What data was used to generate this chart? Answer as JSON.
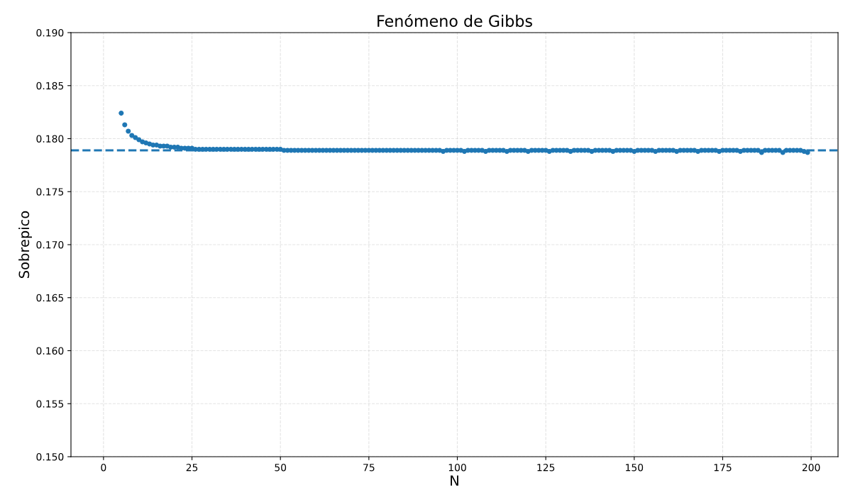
{
  "chart_data": {
    "type": "scatter",
    "title": "Fenómeno de Gibbs",
    "xlabel": "N",
    "ylabel": "Sobrepico",
    "x": [
      5,
      6,
      7,
      8,
      9,
      10,
      11,
      12,
      13,
      14,
      15,
      16,
      17,
      18,
      19,
      20,
      21,
      22,
      23,
      24,
      25,
      26,
      27,
      28,
      29,
      30,
      31,
      32,
      33,
      34,
      35,
      36,
      37,
      38,
      39,
      40,
      41,
      42,
      43,
      44,
      45,
      46,
      47,
      48,
      49,
      50,
      51,
      52,
      53,
      54,
      55,
      56,
      57,
      58,
      59,
      60,
      61,
      62,
      63,
      64,
      65,
      66,
      67,
      68,
      69,
      70,
      71,
      72,
      73,
      74,
      75,
      76,
      77,
      78,
      79,
      80,
      81,
      82,
      83,
      84,
      85,
      86,
      87,
      88,
      89,
      90,
      91,
      92,
      93,
      94,
      95,
      96,
      97,
      98,
      99,
      100,
      101,
      102,
      103,
      104,
      105,
      106,
      107,
      108,
      109,
      110,
      111,
      112,
      113,
      114,
      115,
      116,
      117,
      118,
      119,
      120,
      121,
      122,
      123,
      124,
      125,
      126,
      127,
      128,
      129,
      130,
      131,
      132,
      133,
      134,
      135,
      136,
      137,
      138,
      139,
      140,
      141,
      142,
      143,
      144,
      145,
      146,
      147,
      148,
      149,
      150,
      151,
      152,
      153,
      154,
      155,
      156,
      157,
      158,
      159,
      160,
      161,
      162,
      163,
      164,
      165,
      166,
      167,
      168,
      169,
      170,
      171,
      172,
      173,
      174,
      175,
      176,
      177,
      178,
      179,
      180,
      181,
      182,
      183,
      184,
      185,
      186,
      187,
      188,
      189,
      190,
      191,
      192,
      193,
      194,
      195,
      196,
      197,
      198,
      199
    ],
    "series": [
      {
        "color": "#1f77b4",
        "values": [
          0.1824,
          0.1813,
          0.1807,
          0.1803,
          0.1801,
          0.1799,
          0.1797,
          0.1796,
          0.1795,
          0.1794,
          0.1794,
          0.1793,
          0.1793,
          0.1793,
          0.1792,
          0.1792,
          0.1792,
          0.1791,
          0.1791,
          0.1791,
          0.1791,
          0.179,
          0.179,
          0.179,
          0.179,
          0.179,
          0.179,
          0.179,
          0.179,
          0.179,
          0.179,
          0.179,
          0.179,
          0.179,
          0.179,
          0.179,
          0.179,
          0.179,
          0.179,
          0.179,
          0.179,
          0.179,
          0.179,
          0.179,
          0.179,
          0.179,
          0.1789,
          0.1789,
          0.1789,
          0.1789,
          0.1789,
          0.1789,
          0.1789,
          0.1789,
          0.1789,
          0.1789,
          0.1789,
          0.1789,
          0.1789,
          0.1789,
          0.1789,
          0.1789,
          0.1789,
          0.1789,
          0.1789,
          0.1789,
          0.1789,
          0.1789,
          0.1789,
          0.1789,
          0.1789,
          0.1789,
          0.1789,
          0.1789,
          0.1789,
          0.1789,
          0.1789,
          0.1789,
          0.1789,
          0.1789,
          0.1789,
          0.1789,
          0.1789,
          0.1789,
          0.1789,
          0.1789,
          0.1789,
          0.1789,
          0.1789,
          0.1789,
          0.1789,
          0.1788,
          0.1789,
          0.1789,
          0.1789,
          0.1789,
          0.1789,
          0.1788,
          0.1789,
          0.1789,
          0.1789,
          0.1789,
          0.1789,
          0.1788,
          0.1789,
          0.1789,
          0.1789,
          0.1789,
          0.1789,
          0.1788,
          0.1789,
          0.1789,
          0.1789,
          0.1789,
          0.1789,
          0.1788,
          0.1789,
          0.1789,
          0.1789,
          0.1789,
          0.1789,
          0.1788,
          0.1789,
          0.1789,
          0.1789,
          0.1789,
          0.1789,
          0.1788,
          0.1789,
          0.1789,
          0.1789,
          0.1789,
          0.1789,
          0.1788,
          0.1789,
          0.1789,
          0.1789,
          0.1789,
          0.1789,
          0.1788,
          0.1789,
          0.1789,
          0.1789,
          0.1789,
          0.1789,
          0.1788,
          0.1789,
          0.1789,
          0.1789,
          0.1789,
          0.1789,
          0.1788,
          0.1789,
          0.1789,
          0.1789,
          0.1789,
          0.1789,
          0.1788,
          0.1789,
          0.1789,
          0.1789,
          0.1789,
          0.1789,
          0.1788,
          0.1789,
          0.1789,
          0.1789,
          0.1789,
          0.1789,
          0.1788,
          0.1789,
          0.1789,
          0.1789,
          0.1789,
          0.1789,
          0.1788,
          0.1789,
          0.1789,
          0.1789,
          0.1789,
          0.1789,
          0.1787,
          0.1789,
          0.1789,
          0.1789,
          0.1789,
          0.1789,
          0.1787,
          0.1789,
          0.1789,
          0.1789,
          0.1789,
          0.1789,
          0.1788,
          0.1787
        ]
      }
    ],
    "ref_lines": [
      {
        "axis": "y",
        "value": 0.1789,
        "color": "#1f77b4",
        "line_style": "dashed"
      }
    ],
    "xlim": [
      -9.2,
      207.6
    ],
    "xticks": [
      0,
      25,
      50,
      75,
      100,
      125,
      150,
      175,
      200
    ],
    "ylim": [
      0.15,
      0.19
    ],
    "yticks": [
      {
        "value": 0.15,
        "label": "0.150"
      },
      {
        "value": 0.155,
        "label": "0.155"
      },
      {
        "value": 0.16,
        "label": "0.160"
      },
      {
        "value": 0.165,
        "label": "0.165"
      },
      {
        "value": 0.17,
        "label": "0.170"
      },
      {
        "value": 0.175,
        "label": "0.175"
      },
      {
        "value": 0.18,
        "label": "0.180"
      },
      {
        "value": 0.185,
        "label": "0.185"
      },
      {
        "value": 0.19,
        "label": "0.190"
      }
    ],
    "grid": true,
    "marker": "circle"
  }
}
